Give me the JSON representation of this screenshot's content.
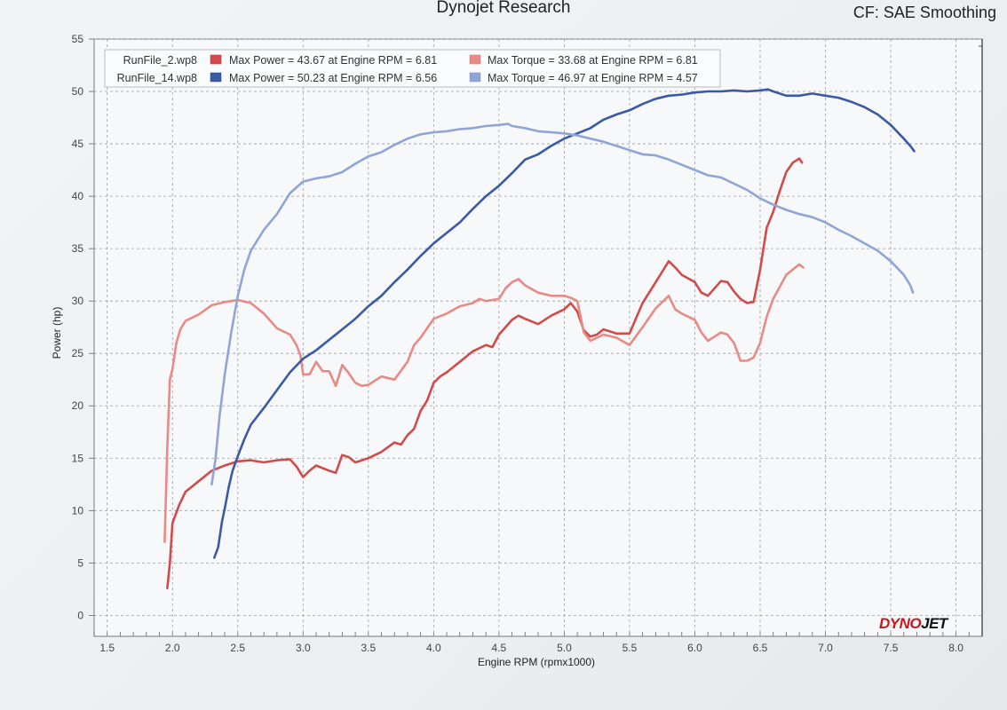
{
  "header": {
    "title": "Dynojet Research",
    "cf": "CF: SAE Smoothing"
  },
  "logo": {
    "part1": "DYNO",
    "part2": "JET"
  },
  "colors": {
    "red_dark": "#d14b4b",
    "red_light": "#e88a85",
    "blue_dark": "#3a5aa6",
    "blue_light": "#8fa5d6"
  },
  "legend": [
    {
      "run": "RunFile_2.wp8",
      "text1": "Max Power = 43.67 at Engine RPM = 6.81",
      "text2": "Max Torque = 33.68 at Engine RPM = 6.81"
    },
    {
      "run": "RunFile_14.wp8",
      "text1": "Max Power = 50.23 at Engine RPM = 6.56",
      "text2": "Max Torque = 46.97 at Engine RPM = 4.57"
    }
  ],
  "chart_data": {
    "type": "line",
    "xlabel": "Engine RPM (rpmx1000)",
    "ylabel": "Power (hp)",
    "xlim": [
      1.4,
      8.2
    ],
    "ylim": [
      -2,
      55
    ],
    "xticks": [
      "1.5",
      "2.0",
      "2.5",
      "3.0",
      "3.5",
      "4.0",
      "4.5",
      "5.0",
      "5.5",
      "6.0",
      "6.5",
      "7.0",
      "7.5",
      "8.0"
    ],
    "yticks": [
      "0",
      "5",
      "10",
      "15",
      "20",
      "25",
      "30",
      "35",
      "40",
      "45",
      "50",
      "55"
    ],
    "series": [
      {
        "key": "red_power",
        "color": "#d14b4b",
        "x": [
          1.96,
          1.98,
          2.0,
          2.05,
          2.1,
          2.2,
          2.3,
          2.4,
          2.5,
          2.6,
          2.7,
          2.8,
          2.9,
          2.95,
          3.0,
          3.05,
          3.1,
          3.2,
          3.25,
          3.3,
          3.35,
          3.4,
          3.45,
          3.5,
          3.6,
          3.7,
          3.75,
          3.8,
          3.85,
          3.9,
          3.95,
          4.0,
          4.05,
          4.1,
          4.2,
          4.3,
          4.4,
          4.45,
          4.5,
          4.6,
          4.65,
          4.7,
          4.8,
          4.9,
          5.0,
          5.05,
          5.1,
          5.15,
          5.2,
          5.25,
          5.3,
          5.4,
          5.5,
          5.6,
          5.7,
          5.8,
          5.85,
          5.9,
          6.0,
          6.05,
          6.1,
          6.2,
          6.25,
          6.3,
          6.35,
          6.4,
          6.45,
          6.5,
          6.55,
          6.6,
          6.65,
          6.7,
          6.75,
          6.8,
          6.82
        ],
        "y": [
          2.6,
          5,
          8.8,
          10.5,
          11.8,
          12.8,
          13.8,
          14.3,
          14.7,
          14.8,
          14.6,
          14.8,
          14.9,
          14.2,
          13.2,
          13.8,
          14.3,
          13.8,
          13.6,
          15.3,
          15.1,
          14.6,
          14.8,
          15.0,
          15.6,
          16.5,
          16.3,
          17.2,
          17.8,
          19.5,
          20.5,
          22.2,
          22.8,
          23.2,
          24.2,
          25.2,
          25.8,
          25.6,
          26.8,
          28.2,
          28.6,
          28.3,
          27.8,
          28.6,
          29.2,
          29.8,
          29.0,
          27.2,
          26.6,
          26.8,
          27.3,
          26.9,
          26.9,
          29.8,
          31.8,
          33.8,
          33.2,
          32.5,
          31.8,
          30.8,
          30.5,
          31.9,
          31.8,
          30.9,
          30.2,
          29.8,
          29.9,
          33.0,
          37.0,
          38.5,
          40.5,
          42.3,
          43.2,
          43.6,
          43.2
        ]
      },
      {
        "key": "red_torque",
        "color": "#e88a85",
        "x": [
          1.94,
          1.96,
          1.98,
          2.0,
          2.03,
          2.06,
          2.1,
          2.2,
          2.3,
          2.4,
          2.5,
          2.6,
          2.7,
          2.8,
          2.9,
          2.95,
          2.98,
          3.0,
          3.05,
          3.1,
          3.15,
          3.2,
          3.25,
          3.3,
          3.35,
          3.4,
          3.45,
          3.5,
          3.6,
          3.7,
          3.8,
          3.85,
          3.9,
          4.0,
          4.1,
          4.2,
          4.3,
          4.35,
          4.4,
          4.5,
          4.55,
          4.6,
          4.65,
          4.7,
          4.8,
          4.9,
          5.0,
          5.05,
          5.1,
          5.15,
          5.2,
          5.25,
          5.3,
          5.4,
          5.5,
          5.6,
          5.7,
          5.8,
          5.85,
          5.9,
          6.0,
          6.05,
          6.1,
          6.2,
          6.25,
          6.3,
          6.35,
          6.4,
          6.45,
          6.5,
          6.55,
          6.6,
          6.7,
          6.8,
          6.83
        ],
        "y": [
          7,
          16,
          22.5,
          23.5,
          26,
          27.3,
          28.1,
          28.7,
          29.6,
          29.9,
          30.1,
          29.8,
          28.8,
          27.4,
          26.8,
          25.8,
          24.8,
          23.0,
          23.0,
          24.2,
          23.3,
          23.3,
          21.9,
          23.9,
          23.1,
          22.2,
          21.9,
          22.0,
          22.8,
          22.5,
          24.2,
          25.8,
          26.5,
          28.3,
          28.8,
          29.5,
          29.8,
          30.2,
          30.0,
          30.2,
          31.2,
          31.8,
          32.1,
          31.5,
          30.8,
          30.5,
          30.5,
          30.3,
          30.0,
          27.0,
          26.2,
          26.5,
          26.8,
          26.5,
          25.8,
          27.5,
          29.3,
          30.5,
          29.2,
          28.8,
          28.2,
          27.0,
          26.2,
          27.0,
          26.8,
          26.0,
          24.3,
          24.3,
          24.6,
          26.0,
          28.5,
          30.2,
          32.5,
          33.5,
          33.2
        ]
      },
      {
        "key": "blue_power",
        "color": "#3a5aa6",
        "x": [
          2.32,
          2.35,
          2.38,
          2.4,
          2.43,
          2.46,
          2.5,
          2.55,
          2.6,
          2.7,
          2.8,
          2.9,
          3.0,
          3.1,
          3.2,
          3.3,
          3.4,
          3.5,
          3.6,
          3.7,
          3.8,
          3.9,
          4.0,
          4.1,
          4.2,
          4.3,
          4.4,
          4.5,
          4.6,
          4.7,
          4.8,
          4.9,
          5.0,
          5.1,
          5.2,
          5.3,
          5.4,
          5.5,
          5.6,
          5.7,
          5.8,
          5.9,
          6.0,
          6.1,
          6.2,
          6.3,
          6.4,
          6.5,
          6.56,
          6.6,
          6.7,
          6.8,
          6.9,
          7.0,
          7.1,
          7.2,
          7.3,
          7.4,
          7.5,
          7.6,
          7.65,
          7.68
        ],
        "y": [
          5.5,
          6.5,
          9,
          10.2,
          12.2,
          13.8,
          15.2,
          16.8,
          18.2,
          19.8,
          21.5,
          23.2,
          24.5,
          25.3,
          26.3,
          27.3,
          28.3,
          29.5,
          30.5,
          31.8,
          33.0,
          34.3,
          35.5,
          36.5,
          37.5,
          38.8,
          40.0,
          41.0,
          42.2,
          43.5,
          44.0,
          44.8,
          45.5,
          46.0,
          46.5,
          47.3,
          47.8,
          48.2,
          48.8,
          49.3,
          49.6,
          49.7,
          49.9,
          50.0,
          50.0,
          50.1,
          50.0,
          50.1,
          50.2,
          50.0,
          49.6,
          49.6,
          49.8,
          49.6,
          49.4,
          49.0,
          48.5,
          47.8,
          46.8,
          45.5,
          44.8,
          44.3
        ]
      },
      {
        "key": "blue_torque",
        "color": "#8fa5d6",
        "x": [
          2.3,
          2.33,
          2.36,
          2.4,
          2.45,
          2.5,
          2.55,
          2.6,
          2.7,
          2.8,
          2.9,
          3.0,
          3.1,
          3.2,
          3.3,
          3.4,
          3.5,
          3.6,
          3.7,
          3.8,
          3.9,
          4.0,
          4.1,
          4.2,
          4.3,
          4.4,
          4.5,
          4.57,
          4.6,
          4.7,
          4.8,
          4.9,
          5.0,
          5.1,
          5.2,
          5.3,
          5.4,
          5.5,
          5.6,
          5.7,
          5.8,
          5.9,
          6.0,
          6.1,
          6.2,
          6.3,
          6.4,
          6.5,
          6.6,
          6.7,
          6.8,
          6.9,
          7.0,
          7.1,
          7.2,
          7.3,
          7.4,
          7.5,
          7.6,
          7.65,
          7.67
        ],
        "y": [
          12.5,
          15,
          19,
          23,
          27,
          30.5,
          33,
          34.8,
          36.8,
          38.3,
          40.3,
          41.4,
          41.7,
          41.9,
          42.3,
          43.1,
          43.8,
          44.2,
          44.9,
          45.5,
          45.9,
          46.1,
          46.2,
          46.4,
          46.5,
          46.7,
          46.8,
          46.9,
          46.7,
          46.5,
          46.2,
          46.1,
          46.0,
          45.8,
          45.5,
          45.2,
          44.8,
          44.4,
          44.0,
          43.9,
          43.5,
          43.0,
          42.5,
          42.0,
          41.8,
          41.2,
          40.6,
          39.8,
          39.2,
          38.7,
          38.3,
          38.0,
          37.5,
          36.8,
          36.2,
          35.5,
          34.8,
          33.8,
          32.5,
          31.5,
          30.8
        ]
      }
    ]
  }
}
